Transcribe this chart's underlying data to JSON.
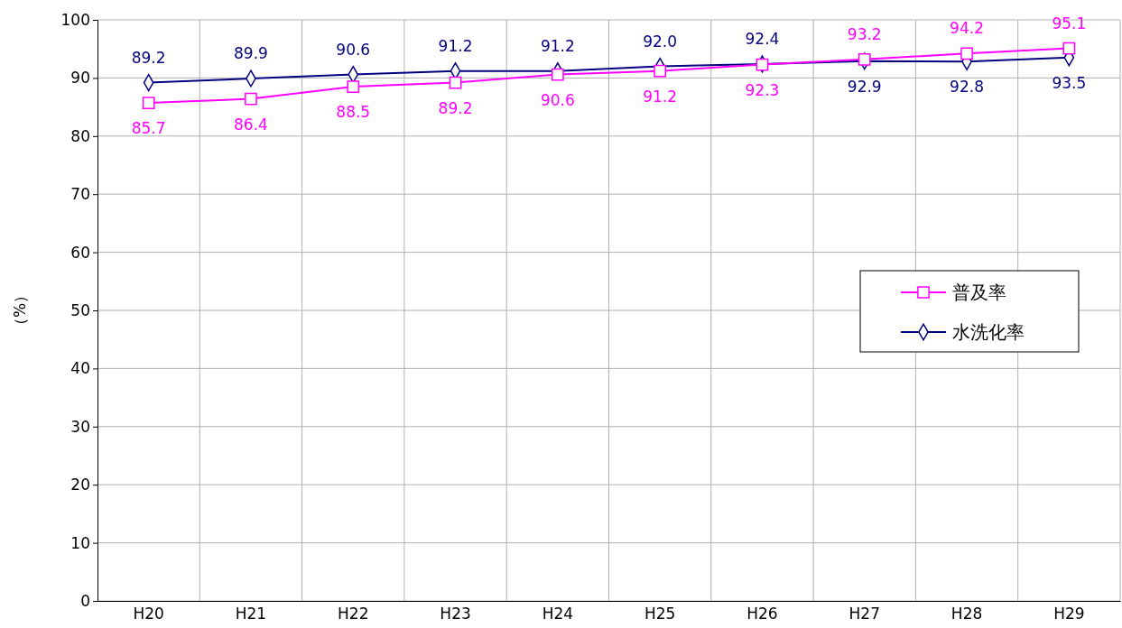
{
  "chart_data": {
    "type": "line",
    "ylabel": "（%）",
    "categories": [
      "H20",
      "H21",
      "H22",
      "H23",
      "H24",
      "H25",
      "H26",
      "H27",
      "H28",
      "H29"
    ],
    "series": [
      {
        "name": "普及率",
        "color": "#ff00ff",
        "marker": "square",
        "values": [
          85.7,
          86.4,
          88.5,
          89.2,
          90.6,
          91.2,
          92.3,
          93.2,
          94.2,
          95.1
        ],
        "value_labels": [
          "85.7",
          "86.4",
          "88.5",
          "89.2",
          "90.6",
          "91.2",
          "92.3",
          "93.2",
          "94.2",
          "95.1"
        ]
      },
      {
        "name": "水洗化率",
        "color": "#000080",
        "marker": "diamond",
        "values": [
          89.2,
          89.9,
          90.6,
          91.2,
          91.2,
          92.0,
          92.4,
          92.9,
          92.8,
          93.5
        ],
        "value_labels": [
          "89.2",
          "89.9",
          "90.6",
          "91.2",
          "91.2",
          "92.0",
          "92.4",
          "92.9",
          "92.8",
          "93.5"
        ]
      }
    ],
    "ylim": [
      0,
      100
    ],
    "yticks": [
      0,
      10,
      20,
      30,
      40,
      50,
      60,
      70,
      80,
      90,
      100
    ],
    "grid": true,
    "legend": "right",
    "line_style": "solid"
  }
}
